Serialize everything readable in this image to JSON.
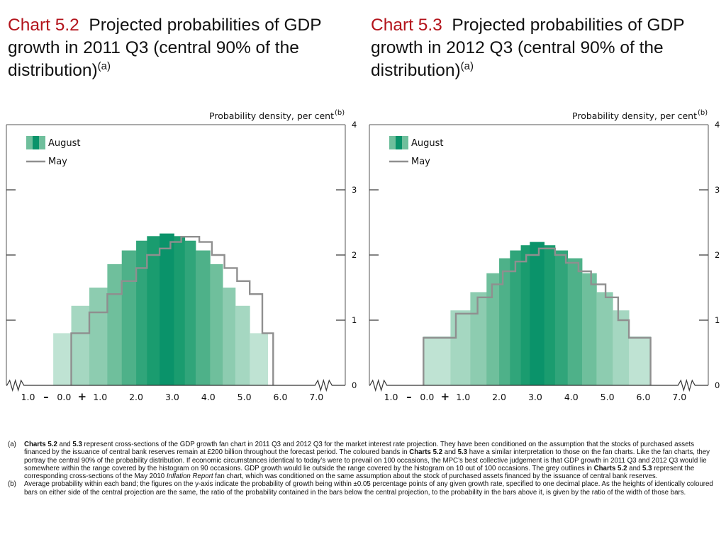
{
  "chart_data": [
    {
      "type": "bar",
      "id": "chart-5-2",
      "chart_label": "Chart 5.2",
      "title": "Projected probabilities of GDP growth in 2011 Q3 (central 90% of the distribution)",
      "title_note": "(a)",
      "ylabel": "Probability density, per cent",
      "ylabel_note": "(b)",
      "ylim": [
        0,
        4
      ],
      "yticks": [
        "0",
        "1",
        "2",
        "3",
        "4"
      ],
      "xlim": [
        -1.6,
        7.8
      ],
      "xticks": [
        {
          "value": -1.0,
          "label": "1.0"
        },
        {
          "value": -0.5,
          "label": "–"
        },
        {
          "value": 0.0,
          "label": "0.0"
        },
        {
          "value": 0.5,
          "label": "+"
        },
        {
          "value": 1.0,
          "label": "1.0"
        },
        {
          "value": 2.0,
          "label": "2.0"
        },
        {
          "value": 3.0,
          "label": "3.0"
        },
        {
          "value": 4.0,
          "label": "4.0"
        },
        {
          "value": 5.0,
          "label": "5.0"
        },
        {
          "value": 6.0,
          "label": "6.0"
        },
        {
          "value": 7.0,
          "label": "7.0"
        }
      ],
      "legend": {
        "position": "top-left",
        "entries": [
          "August",
          "May"
        ]
      },
      "series": [
        {
          "name": "August",
          "bins": [
            {
              "x0": -0.3,
              "x1": 0.2,
              "value": 0.8,
              "shade": 1
            },
            {
              "x0": 0.2,
              "x1": 0.7,
              "value": 1.22,
              "shade": 2
            },
            {
              "x0": 0.7,
              "x1": 1.2,
              "value": 1.5,
              "shade": 3
            },
            {
              "x0": 1.2,
              "x1": 1.6,
              "value": 1.86,
              "shade": 4
            },
            {
              "x0": 1.6,
              "x1": 2.0,
              "value": 2.07,
              "shade": 5
            },
            {
              "x0": 2.0,
              "x1": 2.3,
              "value": 2.22,
              "shade": 6
            },
            {
              "x0": 2.3,
              "x1": 2.65,
              "value": 2.29,
              "shade": 7
            },
            {
              "x0": 2.65,
              "x1": 3.05,
              "value": 2.33,
              "shade": 8
            },
            {
              "x0": 3.05,
              "x1": 3.35,
              "value": 2.29,
              "shade": 7
            },
            {
              "x0": 3.35,
              "x1": 3.65,
              "value": 2.22,
              "shade": 6
            },
            {
              "x0": 3.65,
              "x1": 4.05,
              "value": 2.07,
              "shade": 5
            },
            {
              "x0": 4.05,
              "x1": 4.4,
              "value": 1.86,
              "shade": 4
            },
            {
              "x0": 4.4,
              "x1": 4.75,
              "value": 1.5,
              "shade": 3
            },
            {
              "x0": 4.75,
              "x1": 5.15,
              "value": 1.22,
              "shade": 2
            },
            {
              "x0": 5.15,
              "x1": 5.65,
              "value": 0.8,
              "shade": 1
            }
          ]
        },
        {
          "name": "May",
          "points": [
            [
              0.2,
              0
            ],
            [
              0.2,
              0.8
            ],
            [
              0.7,
              0.8
            ],
            [
              0.7,
              1.12
            ],
            [
              1.2,
              1.12
            ],
            [
              1.2,
              1.4
            ],
            [
              1.6,
              1.4
            ],
            [
              1.6,
              1.6
            ],
            [
              2.0,
              1.6
            ],
            [
              2.0,
              1.8
            ],
            [
              2.3,
              1.8
            ],
            [
              2.3,
              2.0
            ],
            [
              2.65,
              2.0
            ],
            [
              2.65,
              2.1
            ],
            [
              2.95,
              2.1
            ],
            [
              2.95,
              2.2
            ],
            [
              3.25,
              2.2
            ],
            [
              3.25,
              2.28
            ],
            [
              3.75,
              2.28
            ],
            [
              3.75,
              2.2
            ],
            [
              4.1,
              2.2
            ],
            [
              4.1,
              2.0
            ],
            [
              4.45,
              2.0
            ],
            [
              4.45,
              1.8
            ],
            [
              4.8,
              1.8
            ],
            [
              4.8,
              1.6
            ],
            [
              5.15,
              1.6
            ],
            [
              5.15,
              1.4
            ],
            [
              5.5,
              1.4
            ],
            [
              5.5,
              0.8
            ],
            [
              5.8,
              0.8
            ],
            [
              5.8,
              0
            ]
          ]
        }
      ]
    },
    {
      "type": "bar",
      "id": "chart-5-3",
      "chart_label": "Chart 5.3",
      "title": "Projected probabilities of GDP growth in 2012 Q3 (central 90% of the distribution)",
      "title_note": "(a)",
      "ylabel": "Probability density, per cent",
      "ylabel_note": "(b)",
      "ylim": [
        0,
        4
      ],
      "yticks": [
        "0",
        "1",
        "2",
        "3",
        "4"
      ],
      "xlim": [
        -1.6,
        7.8
      ],
      "xticks": [
        {
          "value": -1.0,
          "label": "1.0"
        },
        {
          "value": -0.5,
          "label": "–"
        },
        {
          "value": 0.0,
          "label": "0.0"
        },
        {
          "value": 0.5,
          "label": "+"
        },
        {
          "value": 1.0,
          "label": "1.0"
        },
        {
          "value": 2.0,
          "label": "2.0"
        },
        {
          "value": 3.0,
          "label": "3.0"
        },
        {
          "value": 4.0,
          "label": "4.0"
        },
        {
          "value": 5.0,
          "label": "5.0"
        },
        {
          "value": 6.0,
          "label": "6.0"
        },
        {
          "value": 7.0,
          "label": "7.0"
        }
      ],
      "legend": {
        "position": "top-left",
        "entries": [
          "August",
          "May"
        ]
      },
      "series": [
        {
          "name": "August",
          "bins": [
            {
              "x0": -0.1,
              "x1": 0.65,
              "value": 0.75,
              "shade": 1
            },
            {
              "x0": 0.65,
              "x1": 1.2,
              "value": 1.15,
              "shade": 2
            },
            {
              "x0": 1.2,
              "x1": 1.65,
              "value": 1.43,
              "shade": 3
            },
            {
              "x0": 1.65,
              "x1": 2.0,
              "value": 1.72,
              "shade": 4
            },
            {
              "x0": 2.0,
              "x1": 2.3,
              "value": 1.95,
              "shade": 5
            },
            {
              "x0": 2.3,
              "x1": 2.6,
              "value": 2.07,
              "shade": 6
            },
            {
              "x0": 2.6,
              "x1": 2.85,
              "value": 2.15,
              "shade": 7
            },
            {
              "x0": 2.85,
              "x1": 3.25,
              "value": 2.2,
              "shade": 8
            },
            {
              "x0": 3.25,
              "x1": 3.55,
              "value": 2.15,
              "shade": 7
            },
            {
              "x0": 3.55,
              "x1": 3.9,
              "value": 2.07,
              "shade": 6
            },
            {
              "x0": 3.9,
              "x1": 4.3,
              "value": 1.95,
              "shade": 5
            },
            {
              "x0": 4.3,
              "x1": 4.7,
              "value": 1.72,
              "shade": 4
            },
            {
              "x0": 4.7,
              "x1": 5.15,
              "value": 1.43,
              "shade": 3
            },
            {
              "x0": 5.15,
              "x1": 5.6,
              "value": 1.15,
              "shade": 2
            },
            {
              "x0": 5.6,
              "x1": 6.2,
              "value": 0.75,
              "shade": 1
            }
          ]
        },
        {
          "name": "May",
          "points": [
            [
              -0.1,
              0
            ],
            [
              -0.1,
              0.73
            ],
            [
              0.8,
              0.73
            ],
            [
              0.8,
              1.1
            ],
            [
              1.4,
              1.1
            ],
            [
              1.4,
              1.35
            ],
            [
              1.8,
              1.35
            ],
            [
              1.8,
              1.55
            ],
            [
              2.1,
              1.55
            ],
            [
              2.1,
              1.75
            ],
            [
              2.45,
              1.75
            ],
            [
              2.45,
              1.9
            ],
            [
              2.75,
              1.9
            ],
            [
              2.75,
              2.0
            ],
            [
              3.1,
              2.0
            ],
            [
              3.1,
              2.1
            ],
            [
              3.55,
              2.1
            ],
            [
              3.55,
              2.0
            ],
            [
              3.85,
              2.0
            ],
            [
              3.85,
              1.88
            ],
            [
              4.2,
              1.88
            ],
            [
              4.2,
              1.75
            ],
            [
              4.55,
              1.75
            ],
            [
              4.55,
              1.55
            ],
            [
              4.95,
              1.55
            ],
            [
              4.95,
              1.35
            ],
            [
              5.3,
              1.35
            ],
            [
              5.3,
              1.0
            ],
            [
              5.6,
              1.0
            ],
            [
              5.6,
              0.73
            ],
            [
              6.2,
              0.73
            ],
            [
              6.2,
              0
            ]
          ]
        }
      ]
    }
  ],
  "colors": {
    "title_accent": "#b3131b",
    "text": "#111111",
    "axis": "#555555",
    "may_line": "#8f8f8f",
    "shades": [
      "#ffffff",
      "#bfe3d3",
      "#a5d7c1",
      "#8dccb0",
      "#6fbf9c",
      "#4eb189",
      "#30a57a",
      "#1a9c6f",
      "#0a936a"
    ]
  },
  "footnotes": [
    {
      "marker": "(a)",
      "parts": [
        {
          "text": "Charts 5.2",
          "style": "bold"
        },
        {
          "text": " and ",
          "style": "normal"
        },
        {
          "text": "5.3",
          "style": "bold"
        },
        {
          "text": " represent cross-sections of the GDP growth fan chart in 2011 Q3 and 2012 Q3 for the market interest rate projection.  They have been conditioned on the assumption that the stocks of purchased assets financed by the issuance of central bank reserves remain at £200 billion throughout the forecast period.  The coloured bands in ",
          "style": "normal"
        },
        {
          "text": "Charts 5.2",
          "style": "bold"
        },
        {
          "text": " and ",
          "style": "normal"
        },
        {
          "text": "5.3",
          "style": "bold"
        },
        {
          "text": " have a similar interpretation to those on the fan charts.  Like the fan charts, they portray the central 90% of the probability distribution.  If economic circumstances identical to today’s were to prevail on 100 occasions, the MPC’s best collective judgement is that GDP growth in 2011 Q3 and 2012 Q3 would lie somewhere within the range covered by the histogram on 90 occasions.  GDP growth would lie outside the range covered by the histogram on 10 out of 100 occasions.  The grey outlines in ",
          "style": "normal"
        },
        {
          "text": "Charts 5.2",
          "style": "bold"
        },
        {
          "text": " and ",
          "style": "normal"
        },
        {
          "text": "5.3",
          "style": "bold"
        },
        {
          "text": " represent the corresponding cross-sections of the May 2010 ",
          "style": "normal"
        },
        {
          "text": "Inflation Report",
          "style": "italic"
        },
        {
          "text": " fan chart, which was conditioned on the same assumption about the stock of purchased assets financed by the issuance of central bank reserves.",
          "style": "normal"
        }
      ]
    },
    {
      "marker": "(b)",
      "parts": [
        {
          "text": "Average probability within each band;  the figures on the y-axis indicate the probability of growth being within ±0.05 percentage points of any given growth rate, specified to one decimal place.  As the heights of identically coloured bars on either side of the central projection are the same, the ratio of the probability contained in the bars below the central projection, to the probability in the bars above it, is given by the ratio of the width of those bars.",
          "style": "normal"
        }
      ]
    }
  ]
}
